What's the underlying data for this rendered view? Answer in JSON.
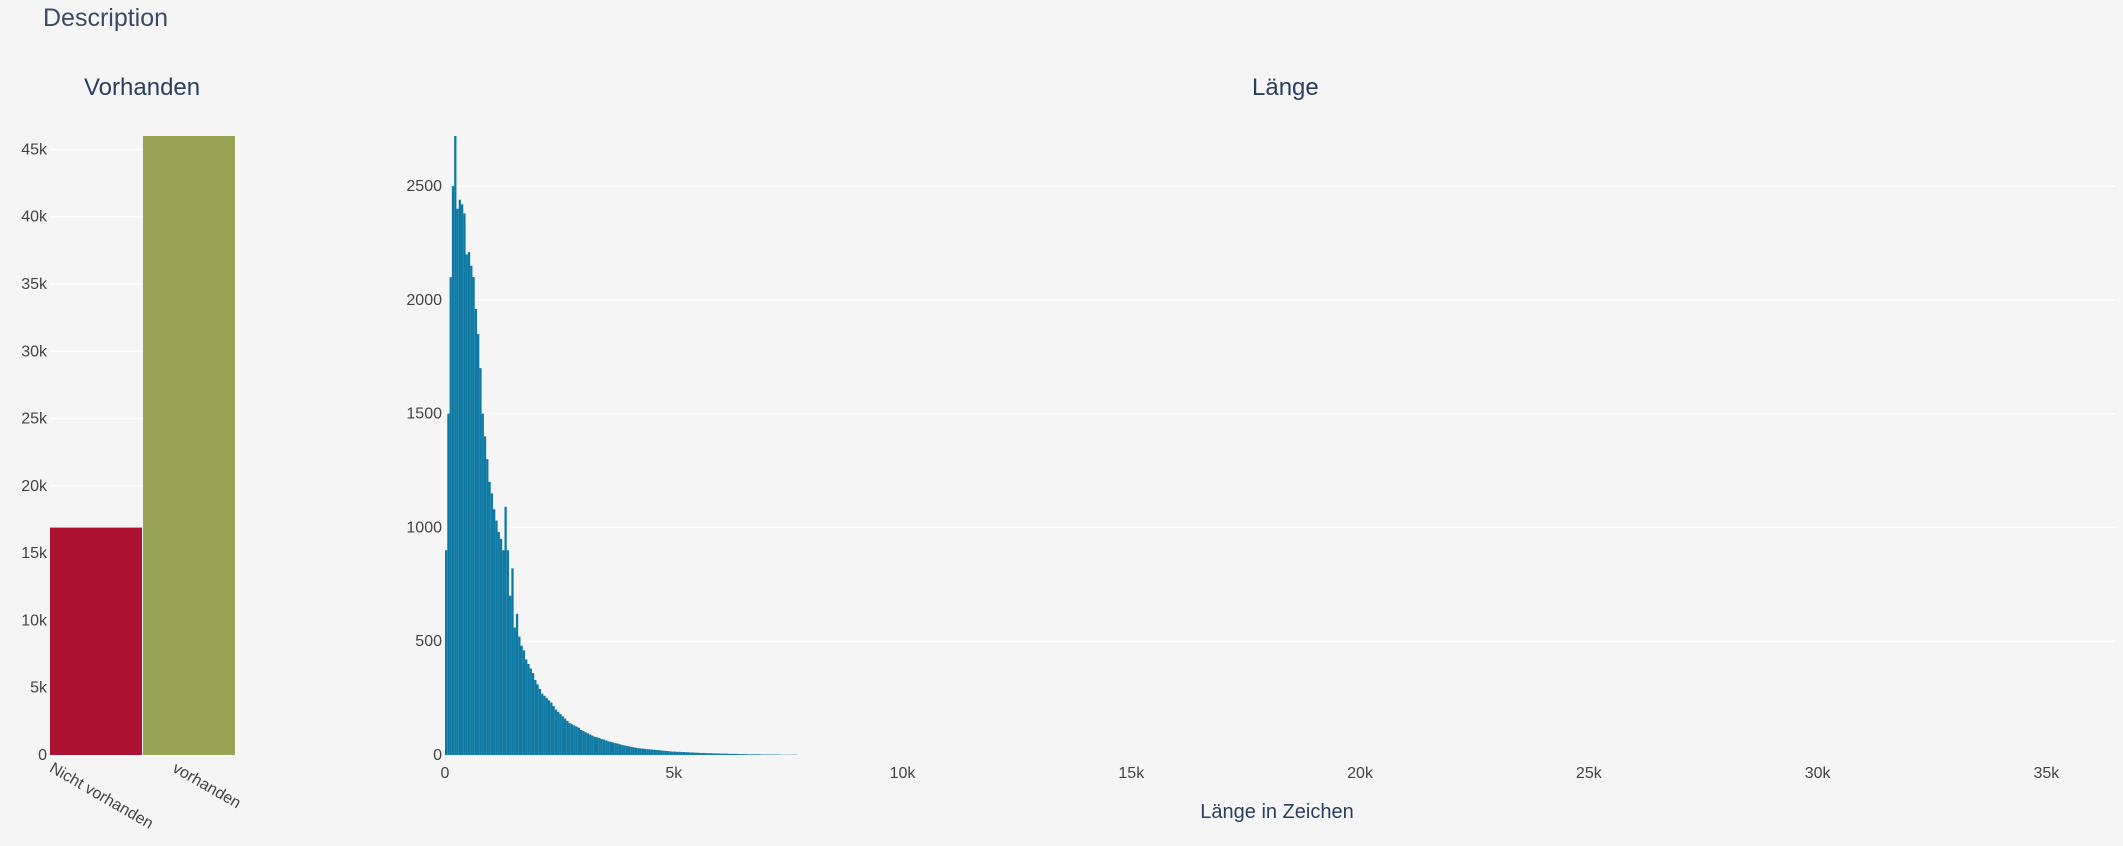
{
  "page": {
    "section_title": "Description"
  },
  "chart_data": [
    {
      "type": "bar",
      "title": "Vorhanden",
      "categories": [
        "Nicht vorhanden",
        "vorhanden"
      ],
      "values": [
        16900,
        46000
      ],
      "colors": [
        "#ad1131",
        "#98a356"
      ],
      "ylim": [
        0,
        46000
      ],
      "yticks": [
        0,
        5000,
        10000,
        15000,
        20000,
        25000,
        30000,
        35000,
        40000,
        45000
      ],
      "ytick_labels": [
        "0",
        "5k",
        "10k",
        "15k",
        "20k",
        "25k",
        "30k",
        "35k",
        "40k",
        "45k"
      ],
      "xlabel": "",
      "ylabel": "",
      "grid": true
    },
    {
      "type": "bar",
      "subtype": "histogram",
      "title": "Länge",
      "xlabel": "Länge in Zeichen",
      "ylabel": "",
      "color": "#0e7aa3",
      "xlim": [
        0,
        36500
      ],
      "ylim": [
        0,
        2720
      ],
      "xticks": [
        0,
        5000,
        10000,
        15000,
        20000,
        25000,
        30000,
        35000
      ],
      "xtick_labels": [
        "0",
        "5k",
        "10k",
        "15k",
        "20k",
        "25k",
        "30k",
        "35k"
      ],
      "yticks": [
        0,
        500,
        1000,
        1500,
        2000,
        2500
      ],
      "ytick_labels": [
        "0",
        "500",
        "1000",
        "1500",
        "2000",
        "2500"
      ],
      "grid": true,
      "bin_start": 0,
      "bin_width": 50,
      "counts": [
        900,
        1500,
        2100,
        2500,
        2720,
        2400,
        2440,
        2420,
        2380,
        2200,
        2210,
        2150,
        2100,
        1960,
        1850,
        1700,
        1500,
        1400,
        1300,
        1200,
        1150,
        1080,
        1030,
        980,
        950,
        900,
        1090,
        900,
        700,
        820,
        560,
        620,
        520,
        480,
        460,
        420,
        400,
        380,
        360,
        330,
        310,
        290,
        270,
        260,
        250,
        240,
        230,
        215,
        200,
        190,
        180,
        170,
        160,
        150,
        140,
        135,
        130,
        125,
        120,
        110,
        105,
        100,
        95,
        90,
        85,
        80,
        78,
        75,
        70,
        68,
        64,
        60,
        58,
        55,
        52,
        50,
        47,
        44,
        42,
        40,
        38,
        36,
        34,
        32,
        30,
        29,
        28,
        27,
        26,
        25,
        24,
        23,
        22,
        21,
        20,
        19,
        18,
        17,
        16,
        15,
        15,
        14,
        14,
        13,
        13,
        12,
        12,
        11,
        11,
        10,
        10,
        9,
        9,
        9,
        8,
        8,
        8,
        7,
        7,
        7,
        6,
        6,
        6,
        6,
        5,
        5,
        5,
        5,
        4,
        4,
        4,
        4,
        3,
        3,
        3,
        3,
        3,
        3,
        2,
        2,
        2,
        2,
        2,
        2,
        2,
        2,
        1,
        1,
        1,
        1,
        1,
        1,
        1,
        1
      ]
    }
  ]
}
